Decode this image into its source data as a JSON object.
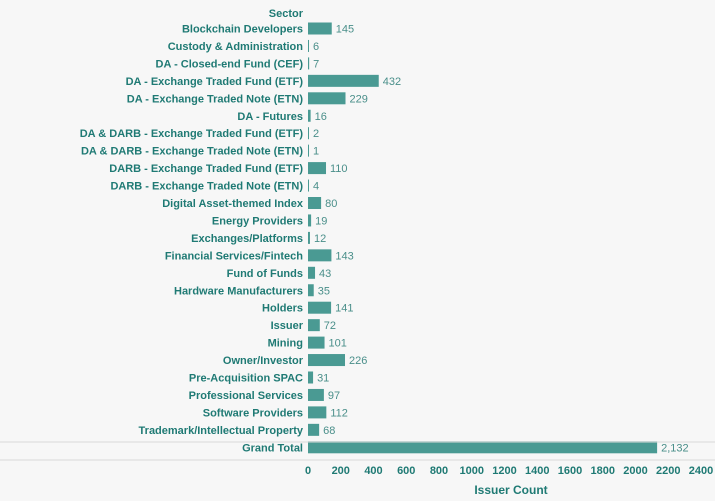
{
  "chart_data": {
    "type": "bar",
    "orientation": "horizontal",
    "header": "Sector",
    "xlabel": "Issuer Count",
    "xlim": [
      0,
      2400
    ],
    "xticks": [
      0,
      200,
      400,
      600,
      800,
      1000,
      1200,
      1400,
      1600,
      1800,
      2000,
      2200,
      2400
    ],
    "bar_color": "#4a9a93",
    "text_color": "#1f7a74",
    "categories": [
      "Blockchain Developers",
      "Custody & Administration",
      "DA - Closed-end Fund (CEF)",
      "DA - Exchange Traded Fund (ETF)",
      "DA - Exchange Traded Note (ETN)",
      "DA - Futures",
      "DA & DARB - Exchange Traded Fund (ETF)",
      "DA & DARB - Exchange Traded Note (ETN)",
      "DARB - Exchange Traded Fund (ETF)",
      "DARB - Exchange Traded Note (ETN)",
      "Digital Asset-themed Index",
      "Energy Providers",
      "Exchanges/Platforms",
      "Financial Services/Fintech",
      "Fund of Funds",
      "Hardware Manufacturers",
      "Holders",
      "Issuer",
      "Mining",
      "Owner/Investor",
      "Pre-Acquisition SPAC",
      "Professional Services",
      "Software Providers",
      "Trademark/Intellectual Property"
    ],
    "values": [
      145,
      6,
      7,
      432,
      229,
      16,
      2,
      1,
      110,
      4,
      80,
      19,
      12,
      143,
      43,
      35,
      141,
      72,
      101,
      226,
      31,
      97,
      112,
      68
    ],
    "value_labels": [
      "145",
      "6",
      "7",
      "432",
      "229",
      "16",
      "2",
      "1",
      "110",
      "4",
      "80",
      "19",
      "12",
      "143",
      "43",
      "35",
      "141",
      "72",
      "101",
      "226",
      "31",
      "97",
      "112",
      "68"
    ],
    "total": {
      "label": "Grand Total",
      "value": 2132,
      "value_label": "2,132"
    }
  }
}
